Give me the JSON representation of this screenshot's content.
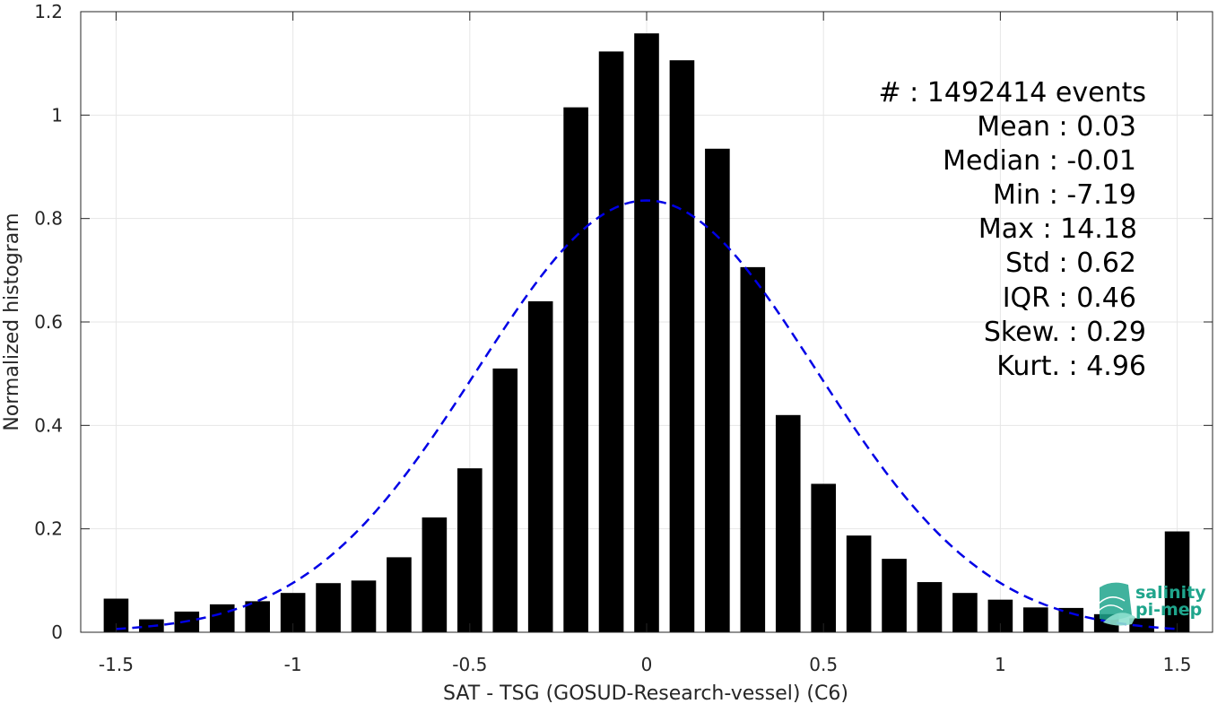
{
  "chart_data": {
    "type": "bar",
    "xlabel": "SAT - TSG (GOSUD-Research-vessel) (C6)",
    "ylabel": "Normalized histogram",
    "xlim": [
      -1.6,
      1.6
    ],
    "ylim": [
      0,
      1.2
    ],
    "xticks": [
      -1.5,
      -1,
      -0.5,
      0,
      0.5,
      1,
      1.5
    ],
    "xtick_labels": [
      "-1.5",
      "-1",
      "-0.5",
      "0",
      "0.5",
      "1",
      "1.5"
    ],
    "yticks": [
      0,
      0.2,
      0.4,
      0.6,
      0.8,
      1,
      1.2
    ],
    "ytick_labels": [
      "0",
      "0.2",
      "0.4",
      "0.6",
      "0.8",
      "1",
      "1.2"
    ],
    "grid": true,
    "bar_color": "#000000",
    "bar_width": 0.07,
    "x": [
      -1.5,
      -1.4,
      -1.3,
      -1.2,
      -1.1,
      -1.0,
      -0.9,
      -0.8,
      -0.7,
      -0.6,
      -0.5,
      -0.4,
      -0.3,
      -0.2,
      -0.1,
      0.0,
      0.1,
      0.2,
      0.3,
      0.4,
      0.5,
      0.6,
      0.7,
      0.8,
      0.9,
      1.0,
      1.1,
      1.2,
      1.3,
      1.4,
      1.5
    ],
    "values": [
      0.065,
      0.025,
      0.04,
      0.054,
      0.06,
      0.076,
      0.095,
      0.1,
      0.145,
      0.222,
      0.317,
      0.51,
      0.64,
      1.015,
      1.123,
      1.158,
      1.106,
      0.935,
      0.706,
      0.42,
      0.287,
      0.187,
      0.142,
      0.097,
      0.076,
      0.063,
      0.048,
      0.047,
      0.035,
      0.027,
      0.195
    ],
    "fit": {
      "type": "gaussian",
      "color": "#0000e6",
      "mean": 0.0,
      "peak": 0.835,
      "sigma": 0.48,
      "x_range": [
        -1.5,
        1.5
      ]
    },
    "stats": [
      {
        "label": "#  : 1492414 events"
      },
      {
        "label": "Mean : 0.03"
      },
      {
        "label": "Median : -0.01"
      },
      {
        "label": "Min : -7.19"
      },
      {
        "label": "Max : 14.18"
      },
      {
        "label": "Std : 0.62"
      },
      {
        "label": "IQR : 0.46"
      },
      {
        "label": "Skew. : 0.29"
      },
      {
        "label": "Kurt. : 4.96"
      }
    ]
  },
  "logo": {
    "line1": "salinity",
    "line2": "pi-mep",
    "color": "#1fa58c"
  }
}
